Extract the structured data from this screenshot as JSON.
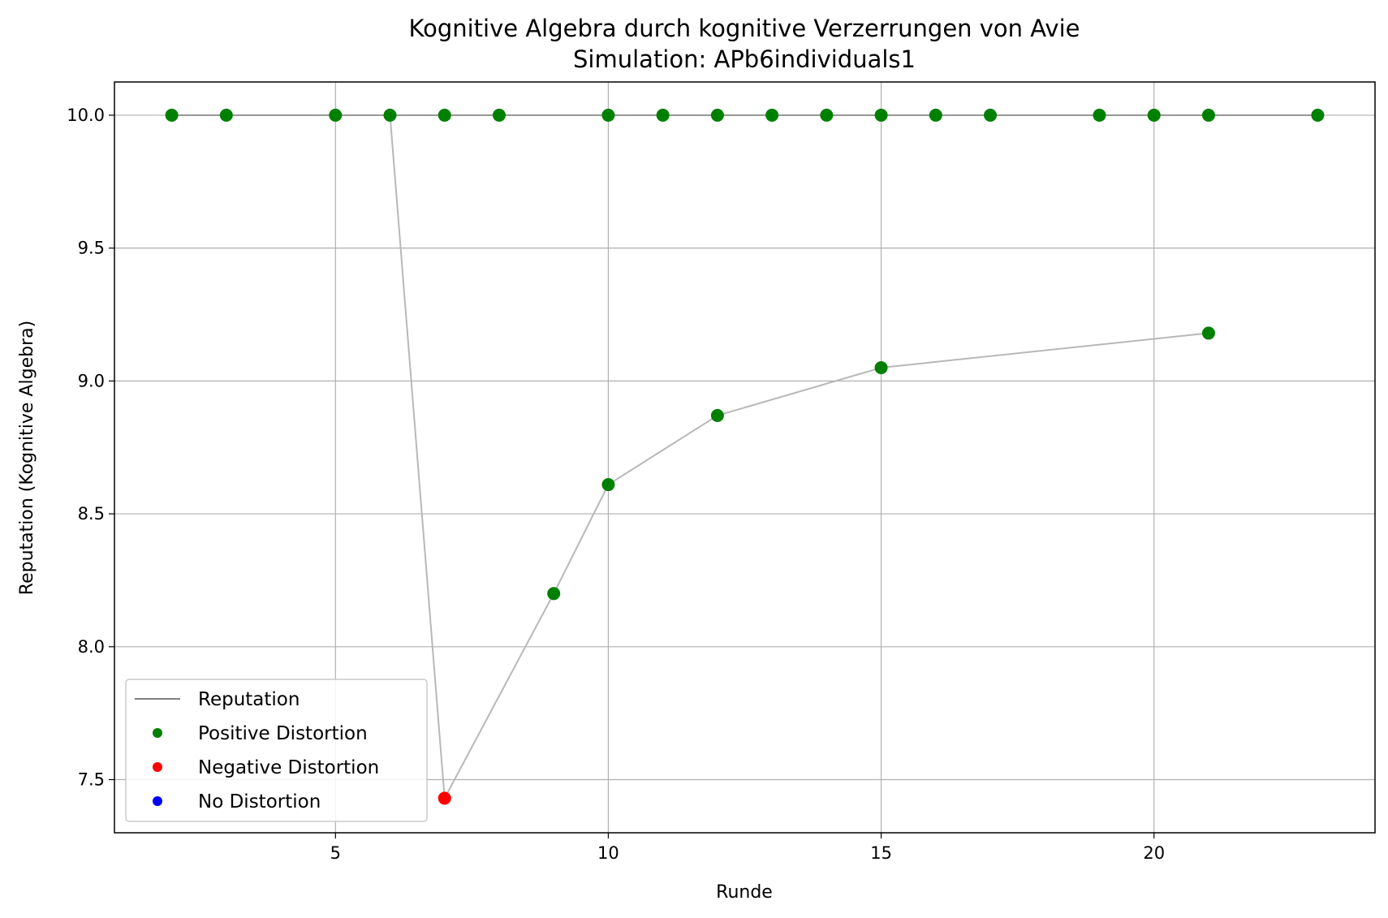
{
  "chart_data": {
    "type": "line",
    "title": "Kognitive Algebra durch kognitive Verzerrungen von Avie",
    "subtitle": "Simulation: APb6individuals1",
    "xlabel": "Runde",
    "ylabel": "Reputation (Kognitive Algebra)",
    "xlim": [
      0.95,
      24.05
    ],
    "ylim": [
      7.3,
      10.125
    ],
    "xticks": [
      5,
      10,
      15,
      20
    ],
    "yticks": [
      7.5,
      8.0,
      8.5,
      9.0,
      9.5,
      10.0
    ],
    "xtick_labels": [
      "5",
      "10",
      "15",
      "20"
    ],
    "ytick_labels": [
      "7.5",
      "8.0",
      "8.5",
      "9.0",
      "9.5",
      "10.0"
    ],
    "grid": true,
    "legend_position": "lower-left",
    "colors": {
      "reputation_line": "#808080",
      "positive": "#008000",
      "negative": "#ff0000",
      "none": "#0000ff",
      "reference_line": "#b8b8b8"
    },
    "legend": [
      {
        "label": "Reputation",
        "kind": "line",
        "color": "#808080"
      },
      {
        "label": "Positive Distortion",
        "kind": "dot",
        "color": "#008000"
      },
      {
        "label": "Negative Distortion",
        "kind": "dot",
        "color": "#ff0000"
      },
      {
        "label": "No Distortion",
        "kind": "dot",
        "color": "#0000ff"
      }
    ],
    "series": [
      {
        "name": "Reputation (reference)",
        "style": "line",
        "x": [
          2,
          3,
          5,
          6,
          7,
          8,
          10,
          11,
          12,
          13,
          14,
          15,
          16,
          17,
          19,
          20,
          21,
          23
        ],
        "y": [
          10,
          10,
          10,
          10,
          10,
          10,
          10,
          10,
          10,
          10,
          10,
          10,
          10,
          10,
          10,
          10,
          10,
          10
        ]
      },
      {
        "name": "Reputation",
        "style": "line",
        "x": [
          6,
          7,
          9,
          10,
          12,
          15,
          21
        ],
        "y": [
          10.0,
          7.43,
          8.2,
          8.61,
          8.87,
          9.05,
          9.18
        ]
      }
    ],
    "points": [
      {
        "x": 2,
        "y": 10.0,
        "category": "positive"
      },
      {
        "x": 3,
        "y": 10.0,
        "category": "positive"
      },
      {
        "x": 5,
        "y": 10.0,
        "category": "positive"
      },
      {
        "x": 6,
        "y": 10.0,
        "category": "positive"
      },
      {
        "x": 7,
        "y": 10.0,
        "category": "positive"
      },
      {
        "x": 8,
        "y": 10.0,
        "category": "positive"
      },
      {
        "x": 10,
        "y": 10.0,
        "category": "positive"
      },
      {
        "x": 11,
        "y": 10.0,
        "category": "positive"
      },
      {
        "x": 12,
        "y": 10.0,
        "category": "positive"
      },
      {
        "x": 13,
        "y": 10.0,
        "category": "positive"
      },
      {
        "x": 14,
        "y": 10.0,
        "category": "positive"
      },
      {
        "x": 15,
        "y": 10.0,
        "category": "positive"
      },
      {
        "x": 16,
        "y": 10.0,
        "category": "positive"
      },
      {
        "x": 17,
        "y": 10.0,
        "category": "positive"
      },
      {
        "x": 19,
        "y": 10.0,
        "category": "positive"
      },
      {
        "x": 20,
        "y": 10.0,
        "category": "positive"
      },
      {
        "x": 21,
        "y": 10.0,
        "category": "positive"
      },
      {
        "x": 23,
        "y": 10.0,
        "category": "positive"
      },
      {
        "x": 7,
        "y": 7.43,
        "category": "negative"
      },
      {
        "x": 9,
        "y": 8.2,
        "category": "positive"
      },
      {
        "x": 10,
        "y": 8.61,
        "category": "positive"
      },
      {
        "x": 12,
        "y": 8.87,
        "category": "positive"
      },
      {
        "x": 15,
        "y": 9.05,
        "category": "positive"
      },
      {
        "x": 21,
        "y": 9.18,
        "category": "positive"
      }
    ]
  }
}
